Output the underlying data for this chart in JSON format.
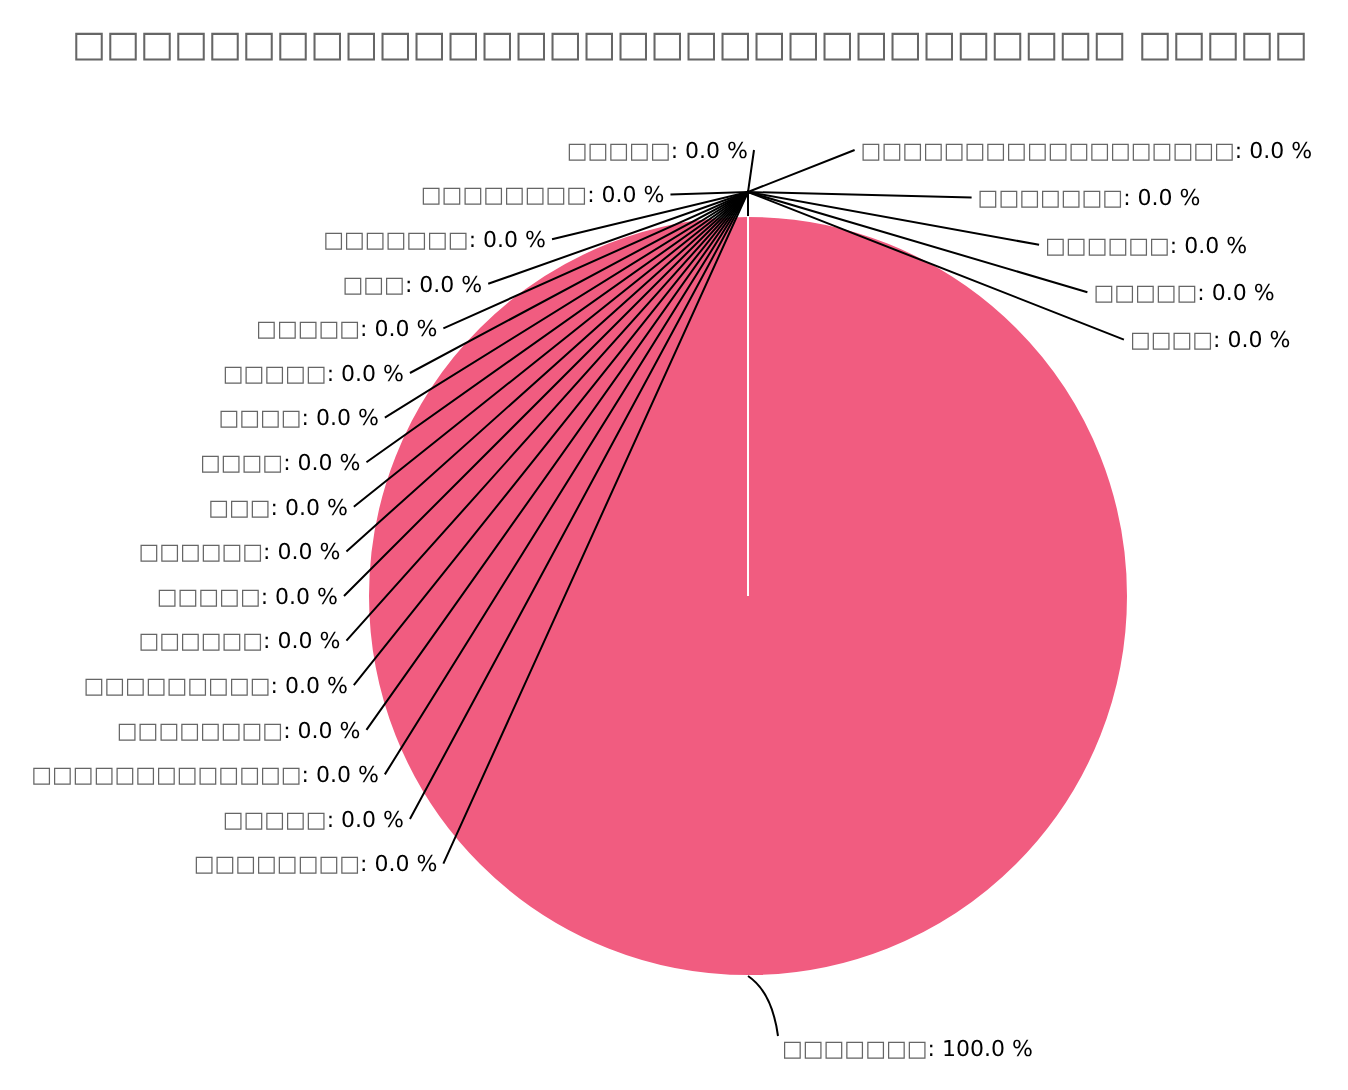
{
  "chart_data": {
    "type": "pie",
    "title": "□□□□□□□□□□□□□□□□□□□□□□□□□□□□□□□ □□□□□",
    "categories": [
      "□□□□□□□□□□□□□□□□□□",
      "□□□□□□□",
      "□□□□□□",
      "□□□□□",
      "□□□□",
      "□□□□□□□",
      "□□□□□□□□",
      "□□□□□",
      "□□□□□□□□□□□□□",
      "□□□□□□□□",
      "□□□□□□□□□",
      "□□□□□□",
      "□□□□□",
      "□□□□□□",
      "□□□",
      "□□□□",
      "□□□□",
      "□□□□□",
      "□□□□□",
      "□□□",
      "□□□□□□□",
      "□□□□□□□□",
      "□□□□□"
    ],
    "values": [
      0,
      0,
      0,
      0,
      0,
      100,
      0,
      0,
      0,
      0,
      0,
      0,
      0,
      0,
      0,
      0,
      0,
      0,
      0,
      0,
      0,
      0,
      0
    ],
    "value_labels": [
      ": 0.0 %",
      ": 0.0 %",
      ": 0.0 %",
      ": 0.0 %",
      ": 0.0 %",
      ": 100.0 %",
      ": 0.0 %",
      ": 0.0 %",
      ": 0.0 %",
      ": 0.0 %",
      ": 0.0 %",
      ": 0.0 %",
      ": 0.0 %",
      ": 0.0 %",
      ": 0.0 %",
      ": 0.0 %",
      ": 0.0 %",
      ": 0.0 %",
      ": 0.0 %",
      ": 0.0 %",
      ": 0.0 %",
      ": 0.0 %",
      ": 0.0 %"
    ],
    "colors": [
      "#7cb5ec",
      "#434348",
      "#90ed7d",
      "#f7a35c",
      "#8085e9",
      "#f15c80",
      "#e4d354",
      "#2b908f",
      "#f45b5b",
      "#91e8e1",
      "#7cb5ec",
      "#434348",
      "#90ed7d",
      "#f7a35c",
      "#8085e9",
      "#f15c80",
      "#e4d354",
      "#2b908f",
      "#f45b5b",
      "#91e8e1",
      "#7cb5ec",
      "#434348",
      "#90ed7d"
    ]
  }
}
